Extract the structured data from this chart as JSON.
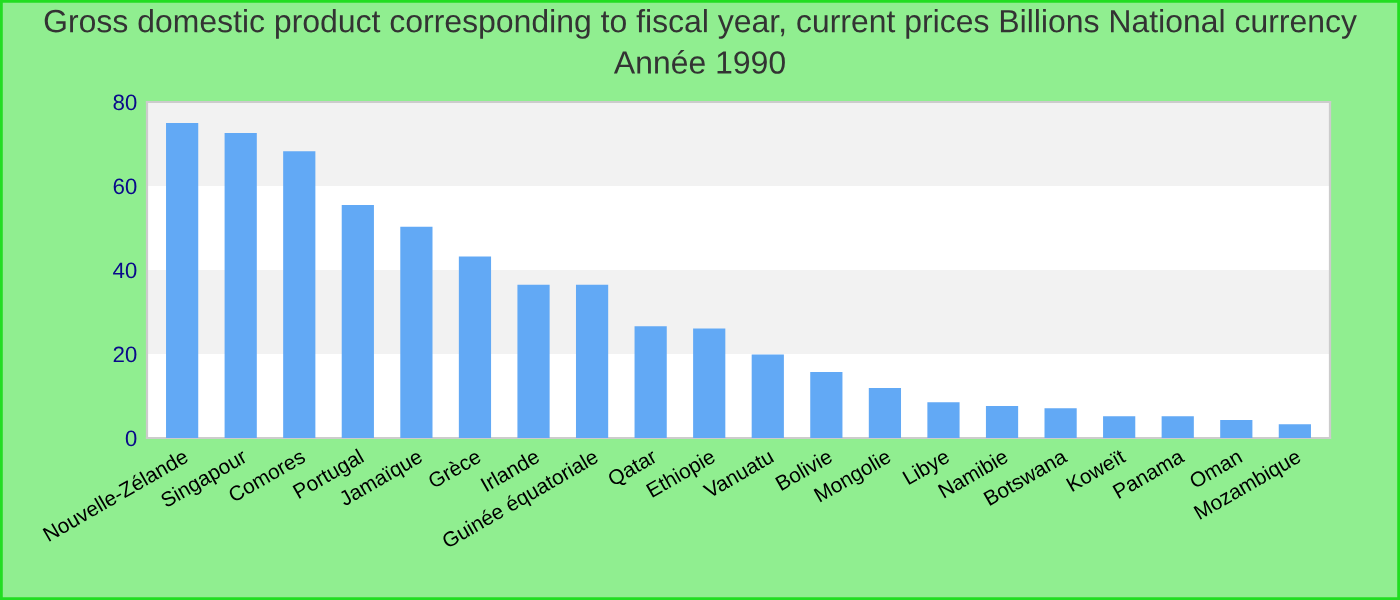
{
  "chart_data": {
    "type": "bar",
    "title": "Gross domestic product corresponding to fiscal year, current prices Billions National currency\nAnnée 1990",
    "categories": [
      "Nouvelle-Zélande",
      "Singapour",
      "Comores",
      "Portugal",
      "Jamaïque",
      "Grèce",
      "Irlande",
      "Guinée équatoriale",
      "Qatar",
      "Ethiopie",
      "Vanuatu",
      "Bolivie",
      "Mongolie",
      "Libye",
      "Namibie",
      "Botswana",
      "Koweït",
      "Panama",
      "Oman",
      "Mozambique"
    ],
    "values": [
      75,
      72.6,
      68.3,
      55.5,
      50.3,
      43.2,
      36.5,
      36.5,
      26.6,
      26.1,
      19.9,
      15.7,
      11.9,
      8.5,
      7.6,
      7.1,
      5.2,
      5.2,
      4.3,
      3.3
    ],
    "color": "#62a9f5",
    "ylim": [
      0,
      80
    ],
    "yticks": [
      0,
      20,
      40,
      60,
      80
    ],
    "bands": [
      {
        "axis": "y",
        "from": 20,
        "to": 40,
        "color": "#f2f2f2"
      },
      {
        "axis": "y",
        "from": 60,
        "to": 80,
        "color": "#f2f2f2"
      }
    ]
  }
}
